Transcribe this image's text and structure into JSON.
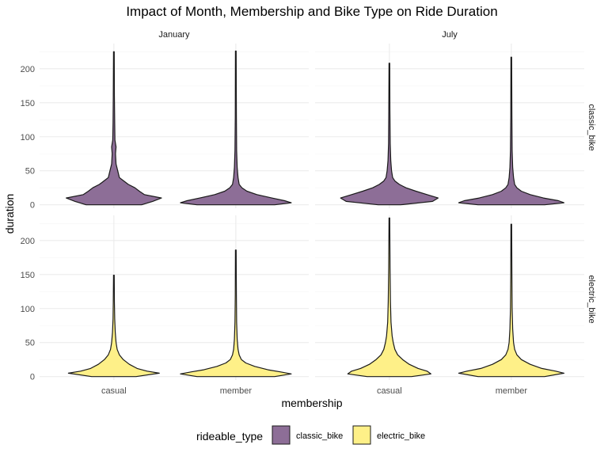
{
  "chart_data": {
    "type": "violin",
    "title": "Impact of Month, Membership and Bike Type on Ride Duration",
    "xlabel": "membership",
    "ylabel": "duration",
    "categories": [
      "casual",
      "member"
    ],
    "facet_columns": [
      "January",
      "July"
    ],
    "facet_rows": [
      "classic_bike",
      "electric_bike"
    ],
    "yticks": [
      0,
      50,
      100,
      150,
      200
    ],
    "ylim": [
      -5,
      237
    ],
    "grid": true,
    "legend": {
      "title": "rideable_type",
      "position": "bottom",
      "entries": [
        {
          "label": "classic_bike",
          "color": "#8d6e97"
        },
        {
          "label": "electric_bike",
          "color": "#fef088"
        }
      ]
    },
    "fills": {
      "classic_bike": "#8d6e97",
      "electric_bike": "#fef088"
    },
    "violins": [
      {
        "month": "January",
        "row": "classic_bike",
        "membership": "casual",
        "max": 225,
        "profile": [
          [
            0,
            0.5
          ],
          [
            5,
            0.7
          ],
          [
            10,
            0.86
          ],
          [
            15,
            0.55
          ],
          [
            20,
            0.46
          ],
          [
            25,
            0.38
          ],
          [
            30,
            0.26
          ],
          [
            35,
            0.18
          ],
          [
            40,
            0.1
          ],
          [
            50,
            0.07
          ],
          [
            60,
            0.04
          ],
          [
            75,
            0.03
          ],
          [
            85,
            0.04
          ],
          [
            95,
            0.02
          ],
          [
            120,
            0.015
          ],
          [
            160,
            0.01
          ],
          [
            225,
            0.006
          ]
        ]
      },
      {
        "month": "January",
        "row": "classic_bike",
        "membership": "member",
        "max": 226,
        "profile": [
          [
            0,
            0.7
          ],
          [
            3,
            1.0
          ],
          [
            6,
            0.88
          ],
          [
            10,
            0.65
          ],
          [
            15,
            0.38
          ],
          [
            20,
            0.2
          ],
          [
            25,
            0.11
          ],
          [
            30,
            0.06
          ],
          [
            40,
            0.04
          ],
          [
            55,
            0.025
          ],
          [
            80,
            0.015
          ],
          [
            130,
            0.01
          ],
          [
            226,
            0.006
          ]
        ]
      },
      {
        "month": "July",
        "row": "classic_bike",
        "membership": "casual",
        "max": 208,
        "profile": [
          [
            0,
            0.2
          ],
          [
            5,
            0.78
          ],
          [
            10,
            0.88
          ],
          [
            15,
            0.68
          ],
          [
            20,
            0.48
          ],
          [
            25,
            0.3
          ],
          [
            30,
            0.18
          ],
          [
            35,
            0.1
          ],
          [
            40,
            0.06
          ],
          [
            50,
            0.04
          ],
          [
            65,
            0.025
          ],
          [
            90,
            0.015
          ],
          [
            140,
            0.01
          ],
          [
            208,
            0.006
          ]
        ]
      },
      {
        "month": "July",
        "row": "classic_bike",
        "membership": "member",
        "max": 217,
        "profile": [
          [
            0,
            0.6
          ],
          [
            3,
            0.95
          ],
          [
            6,
            0.85
          ],
          [
            10,
            0.58
          ],
          [
            15,
            0.34
          ],
          [
            20,
            0.18
          ],
          [
            25,
            0.1
          ],
          [
            30,
            0.06
          ],
          [
            40,
            0.04
          ],
          [
            55,
            0.025
          ],
          [
            80,
            0.015
          ],
          [
            130,
            0.01
          ],
          [
            217,
            0.006
          ]
        ]
      },
      {
        "month": "January",
        "row": "electric_bike",
        "membership": "casual",
        "max": 149,
        "profile": [
          [
            0,
            0.4
          ],
          [
            5,
            0.82
          ],
          [
            8,
            0.6
          ],
          [
            12,
            0.42
          ],
          [
            18,
            0.28
          ],
          [
            25,
            0.17
          ],
          [
            32,
            0.1
          ],
          [
            40,
            0.06
          ],
          [
            50,
            0.04
          ],
          [
            65,
            0.025
          ],
          [
            85,
            0.015
          ],
          [
            110,
            0.01
          ],
          [
            149,
            0.006
          ]
        ]
      },
      {
        "month": "January",
        "row": "electric_bike",
        "membership": "member",
        "max": 186,
        "profile": [
          [
            0,
            0.7
          ],
          [
            4,
            1.0
          ],
          [
            7,
            0.8
          ],
          [
            10,
            0.58
          ],
          [
            15,
            0.34
          ],
          [
            20,
            0.18
          ],
          [
            25,
            0.1
          ],
          [
            32,
            0.06
          ],
          [
            40,
            0.04
          ],
          [
            55,
            0.025
          ],
          [
            80,
            0.015
          ],
          [
            120,
            0.01
          ],
          [
            186,
            0.006
          ]
        ]
      },
      {
        "month": "July",
        "row": "electric_bike",
        "membership": "casual",
        "max": 233,
        "profile": [
          [
            0,
            0.4
          ],
          [
            4,
            0.75
          ],
          [
            8,
            0.68
          ],
          [
            12,
            0.52
          ],
          [
            18,
            0.36
          ],
          [
            25,
            0.24
          ],
          [
            32,
            0.15
          ],
          [
            40,
            0.1
          ],
          [
            50,
            0.07
          ],
          [
            60,
            0.05
          ],
          [
            80,
            0.03
          ],
          [
            110,
            0.02
          ],
          [
            160,
            0.012
          ],
          [
            233,
            0.006
          ]
        ]
      },
      {
        "month": "July",
        "row": "electric_bike",
        "membership": "member",
        "max": 224,
        "profile": [
          [
            0,
            0.6
          ],
          [
            5,
            0.95
          ],
          [
            8,
            0.8
          ],
          [
            12,
            0.55
          ],
          [
            18,
            0.34
          ],
          [
            25,
            0.18
          ],
          [
            32,
            0.1
          ],
          [
            40,
            0.06
          ],
          [
            50,
            0.04
          ],
          [
            70,
            0.025
          ],
          [
            100,
            0.015
          ],
          [
            150,
            0.01
          ],
          [
            224,
            0.006
          ]
        ]
      }
    ]
  }
}
